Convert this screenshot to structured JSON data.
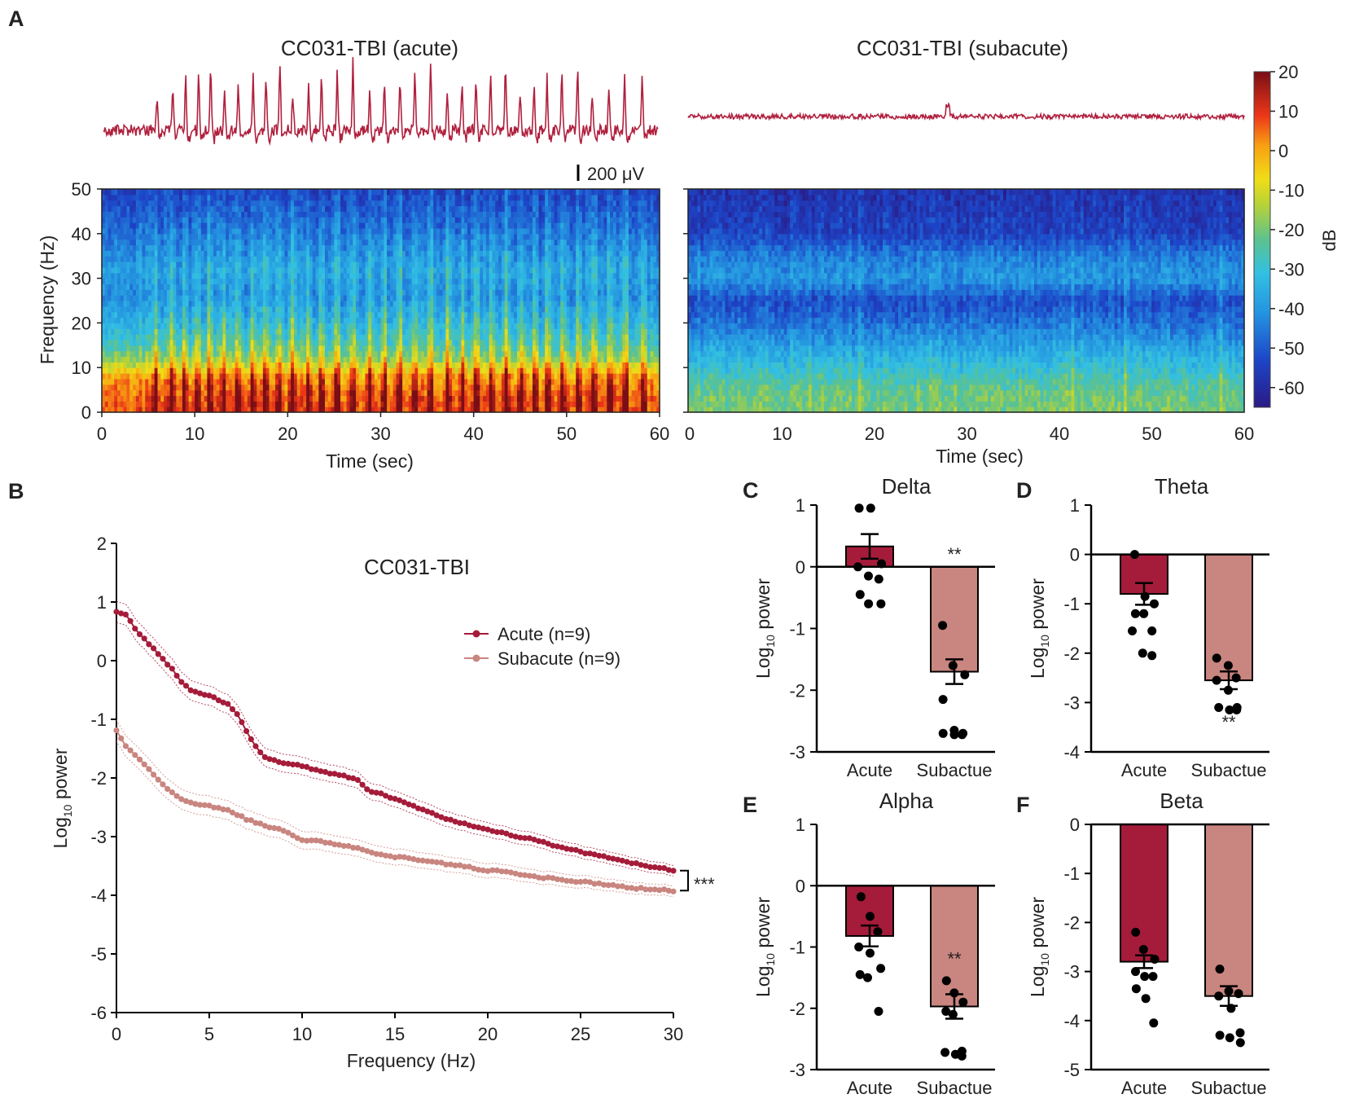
{
  "colors": {
    "acute": "#a51c3a",
    "subacute": "#c9857f",
    "trace": "#b0203e",
    "axis": "#000000"
  },
  "panel_labels": [
    "A",
    "B",
    "C",
    "D",
    "E",
    "F"
  ],
  "chart_data": [
    {
      "id": "A1",
      "type": "heatmap",
      "title": "CC031-TBI (acute)",
      "xlabel": "Time (sec)",
      "ylabel": "Frequency (Hz)",
      "xlim": [
        0,
        60
      ],
      "ylim": [
        0,
        50
      ],
      "xticks": [
        "0",
        "10",
        "20",
        "30",
        "40",
        "50",
        "60"
      ],
      "yticks": [
        "0",
        "10",
        "20",
        "30",
        "40",
        "50"
      ],
      "scale_bar": "200 μV",
      "profile_db": [
        [
          0,
          8
        ],
        [
          4,
          6
        ],
        [
          8,
          0
        ],
        [
          12,
          -18
        ],
        [
          16,
          -28
        ],
        [
          20,
          -34
        ],
        [
          26,
          -42
        ],
        [
          32,
          -38
        ],
        [
          38,
          -44
        ],
        [
          45,
          -50
        ],
        [
          50,
          -54
        ]
      ],
      "seizure_spike_times": [
        5.8,
        7.5,
        8.9,
        10.3,
        11.6,
        13.1,
        14.6,
        16.2,
        17.6,
        19.1,
        20.5,
        22.2,
        23.6,
        25.3,
        27.0,
        28.8,
        30.4,
        32.1,
        33.7,
        35.4,
        37.2,
        38.8,
        40.3,
        41.9,
        43.5,
        45.1,
        46.6,
        48.0,
        49.6,
        51.3,
        52.9,
        54.7,
        56.4,
        58.3
      ]
    },
    {
      "id": "A2",
      "type": "heatmap",
      "title": "CC031-TBI (subacute)",
      "xlabel": "Time (sec)",
      "ylabel": "",
      "xlim": [
        0,
        60
      ],
      "ylim": [
        0,
        50
      ],
      "xticks": [
        "0",
        "10",
        "20",
        "30",
        "40",
        "50",
        "60"
      ],
      "profile_db": [
        [
          0,
          -20
        ],
        [
          5,
          -22
        ],
        [
          10,
          -30
        ],
        [
          15,
          -38
        ],
        [
          20,
          -46
        ],
        [
          25,
          -52
        ],
        [
          30,
          -40
        ],
        [
          35,
          -44
        ],
        [
          40,
          -54
        ],
        [
          45,
          -56
        ],
        [
          50,
          -58
        ]
      ],
      "colorbar": {
        "label": "dB",
        "range": [
          -65,
          20
        ],
        "ticks": [
          "20",
          "10",
          "0",
          "-10",
          "-20",
          "-30",
          "-40",
          "-50",
          "-60"
        ]
      }
    },
    {
      "id": "B",
      "type": "line",
      "title": "CC031-TBI",
      "xlabel": "Frequency (Hz)",
      "ylabel": "Log10 power",
      "xlim": [
        0,
        30
      ],
      "ylim": [
        -6,
        2
      ],
      "xticks": [
        "0",
        "5",
        "10",
        "15",
        "20",
        "25",
        "30"
      ],
      "yticks": [
        "2",
        "1",
        "0",
        "-1",
        "-2",
        "-3",
        "-4",
        "-5",
        "-6"
      ],
      "significance": "***",
      "series": [
        {
          "name": "Acute (n=9)",
          "x": [
            0,
            0.5,
            1,
            2,
            3,
            3.5,
            4,
            5,
            6,
            6.5,
            7,
            7.5,
            8,
            9,
            10,
            11,
            12,
            13,
            13.5,
            15,
            16,
            17,
            18,
            19,
            20,
            21,
            22,
            23,
            24,
            25,
            26,
            27,
            28,
            29,
            30
          ],
          "values": [
            0.82,
            0.78,
            0.55,
            0.2,
            -0.15,
            -0.35,
            -0.5,
            -0.6,
            -0.75,
            -0.9,
            -1.2,
            -1.45,
            -1.65,
            -1.75,
            -1.8,
            -1.88,
            -1.95,
            -2.02,
            -2.2,
            -2.35,
            -2.48,
            -2.6,
            -2.72,
            -2.8,
            -2.88,
            -2.95,
            -3.02,
            -3.1,
            -3.18,
            -3.26,
            -3.32,
            -3.4,
            -3.46,
            -3.52,
            -3.58
          ]
        },
        {
          "name": "Subacute (n=9)",
          "x": [
            0,
            0.5,
            1,
            2,
            3,
            3.5,
            4,
            5,
            6,
            7,
            8,
            9,
            10,
            11,
            12,
            13,
            14,
            15,
            16,
            17,
            18,
            19,
            20,
            21,
            22,
            23,
            24,
            25,
            26,
            27,
            28,
            29,
            30
          ],
          "values": [
            -1.2,
            -1.45,
            -1.6,
            -1.95,
            -2.25,
            -2.35,
            -2.42,
            -2.48,
            -2.55,
            -2.7,
            -2.82,
            -2.9,
            -3.05,
            -3.08,
            -3.15,
            -3.2,
            -3.3,
            -3.35,
            -3.38,
            -3.42,
            -3.48,
            -3.52,
            -3.58,
            -3.6,
            -3.66,
            -3.7,
            -3.74,
            -3.77,
            -3.8,
            -3.85,
            -3.88,
            -3.9,
            -3.92
          ]
        }
      ]
    },
    {
      "id": "C",
      "type": "bar",
      "title": "Delta",
      "ylabel": "Log10 power",
      "categories": [
        "Acute",
        "Subactue"
      ],
      "ylim": [
        -3,
        1
      ],
      "yticks": [
        "1",
        "0",
        "-1",
        "-2",
        "-3"
      ],
      "values": [
        0.33,
        -1.7
      ],
      "sem": [
        0.2,
        0.2
      ],
      "points": [
        [
          0.95,
          0.95,
          0.05,
          0.0,
          -0.15,
          -0.2,
          -0.45,
          -0.6,
          -0.6
        ],
        [
          -0.95,
          -1.6,
          -1.75,
          -2.15,
          -2.65,
          -2.7,
          -2.7,
          -2.72,
          -2.72
        ]
      ],
      "stars": "**"
    },
    {
      "id": "D",
      "type": "bar",
      "title": "Theta",
      "ylabel": "Log10 power",
      "categories": [
        "Acute",
        "Subactue"
      ],
      "ylim": [
        -4,
        1
      ],
      "yticks": [
        "1",
        "0",
        "-1",
        "-2",
        "-3",
        "-4"
      ],
      "values": [
        -0.8,
        -2.55
      ],
      "sem": [
        0.22,
        0.18
      ],
      "points": [
        [
          0.0,
          -0.85,
          -1.0,
          -1.2,
          -1.2,
          -1.55,
          -1.55,
          -2.0,
          -2.05
        ],
        [
          -2.1,
          -2.25,
          -2.5,
          -2.55,
          -2.75,
          -3.1,
          -3.1,
          -3.15,
          -3.15
        ]
      ],
      "stars": "**"
    },
    {
      "id": "E",
      "type": "bar",
      "title": "Alpha",
      "ylabel": "Log10 power",
      "categories": [
        "Acute",
        "Subactue"
      ],
      "ylim": [
        -3,
        1
      ],
      "yticks": [
        "1",
        "0",
        "-1",
        "-2",
        "-3"
      ],
      "values": [
        -0.82,
        -1.97
      ],
      "sem": [
        0.17,
        0.2
      ],
      "points": [
        [
          -0.18,
          -0.5,
          -0.75,
          -1.0,
          -1.1,
          -1.35,
          -1.45,
          -1.5,
          -2.05
        ],
        [
          -1.55,
          -1.75,
          -1.9,
          -2.05,
          -2.1,
          -2.7,
          -2.72,
          -2.75,
          -2.78
        ]
      ],
      "stars": "**"
    },
    {
      "id": "F",
      "type": "bar",
      "title": "Beta",
      "ylabel": "Log10 power",
      "categories": [
        "Acute",
        "Subactue"
      ],
      "ylim": [
        -5,
        0
      ],
      "yticks": [
        "0",
        "-1",
        "-2",
        "-3",
        "-4",
        "-5"
      ],
      "values": [
        -2.8,
        -3.5
      ],
      "sem": [
        0.13,
        0.2
      ],
      "points": [
        [
          -2.2,
          -2.55,
          -2.75,
          -3.0,
          -3.1,
          -3.1,
          -3.35,
          -3.55,
          -4.05
        ],
        [
          -2.95,
          -3.4,
          -3.45,
          -3.5,
          -3.75,
          -4.25,
          -4.3,
          -4.35,
          -4.45
        ]
      ],
      "stars": ""
    }
  ]
}
